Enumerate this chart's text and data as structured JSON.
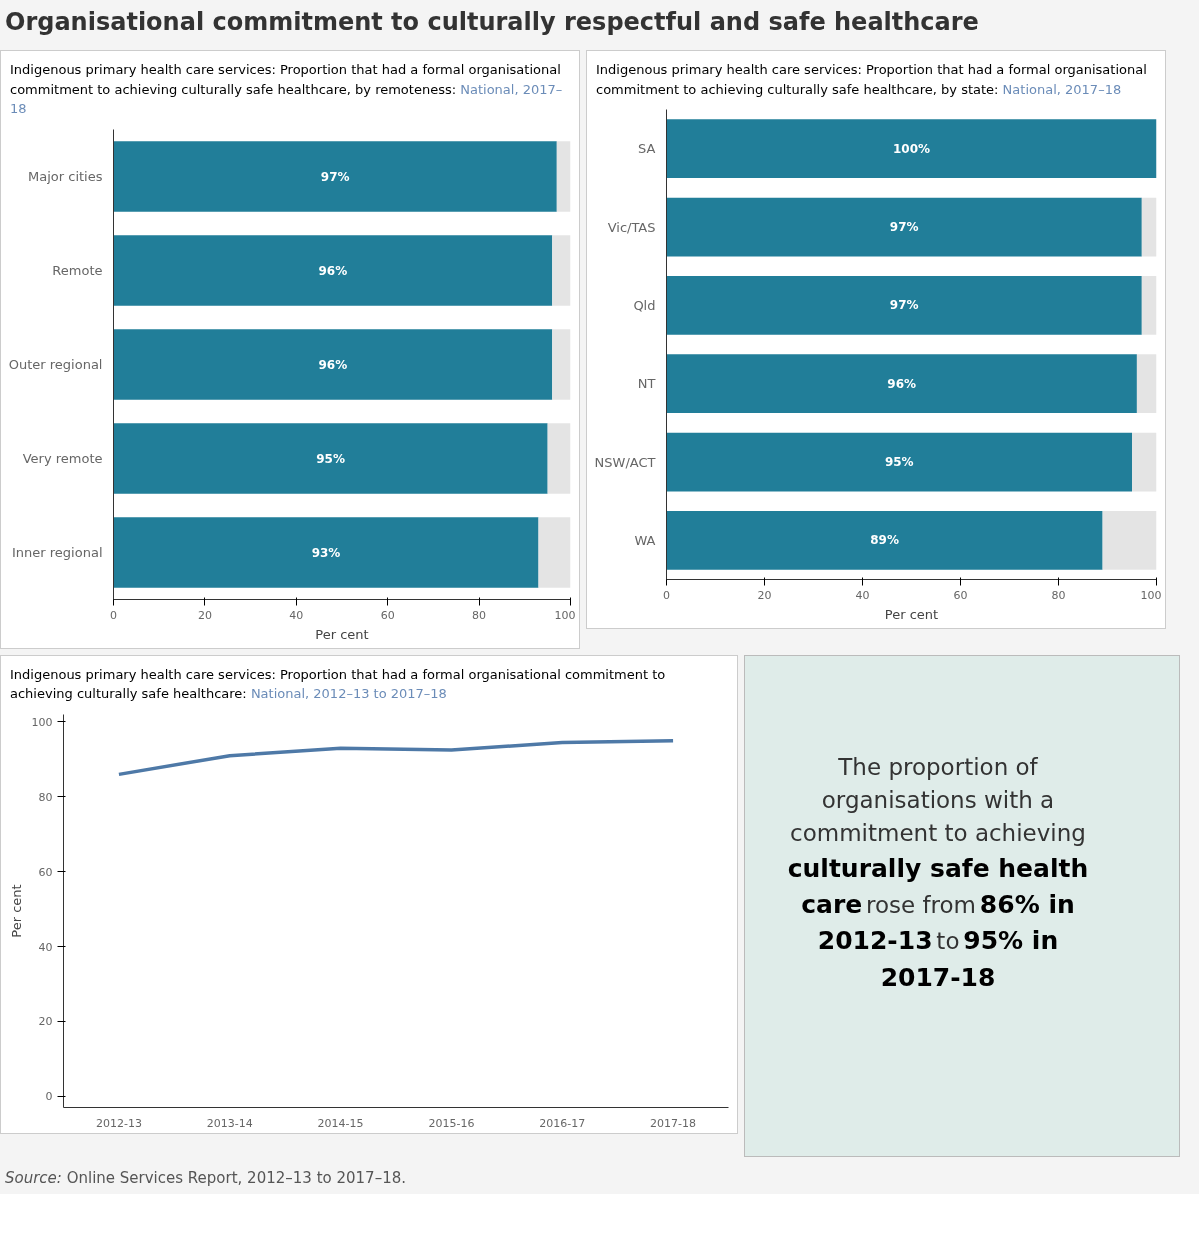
{
  "chart_data": [
    {
      "type": "bar",
      "orientation": "horizontal",
      "stacked": true,
      "title": "Organisational commitment to culturally respectful and safe healthcare",
      "subtitle": "Indigenous primary health care services: Proportion that had a formal organisational commitment to achieving culturally safe healthcare, by remoteness: National, 2017–18",
      "categories": [
        "Major cities",
        "Remote",
        "Outer regional",
        "Very remote",
        "Inner regional"
      ],
      "series": [
        {
          "color": "#217e99",
          "values": [
            97,
            96,
            96,
            95,
            93
          ],
          "value_labels": [
            "97%",
            "96%",
            "96%",
            "95%",
            "93%"
          ]
        },
        {
          "color": "#e4e4e4",
          "values": [
            3,
            4,
            4,
            5,
            7
          ]
        }
      ],
      "xlim": [
        0,
        100
      ],
      "xticks": [
        0,
        20,
        40,
        60,
        80,
        100
      ],
      "xlabel": "Per cent",
      "grid": false
    },
    {
      "type": "bar",
      "orientation": "horizontal",
      "stacked": true,
      "title": "Indigenous primary health care services: Proportion that had a formal organisational commitment to achieving culturally safe healthcare, by state: National, 2017–18",
      "categories": [
        "SA",
        "Vic/TAS",
        "Qld",
        "NT",
        "NSW/ACT",
        "WA"
      ],
      "series": [
        {
          "color": "#217e99",
          "values": [
            100,
            97,
            97,
            96,
            95,
            89
          ],
          "value_labels": [
            "100%",
            "97%",
            "97%",
            "96%",
            "95%",
            "89%"
          ]
        },
        {
          "color": "#e4e4e4",
          "values": [
            0,
            3,
            3,
            4,
            5,
            11
          ]
        }
      ],
      "xlim": [
        0,
        100
      ],
      "xticks": [
        0,
        20,
        40,
        60,
        80,
        100
      ],
      "xlabel": "Per cent",
      "grid": false
    },
    {
      "type": "line",
      "title": "Indigenous primary health care services: Proportion that had a formal organisational commitment to achieving culturally safe healthcare: National, 2012–13 to 2017–18",
      "categories": [
        "2012-13",
        "2013-14",
        "2014-15",
        "2015-16",
        "2016-17",
        "2017-18"
      ],
      "series": [
        {
          "color": "#4e79a7",
          "values": [
            86,
            91,
            93,
            92.5,
            94.5,
            95
          ]
        }
      ],
      "ylim": [
        -3,
        102
      ],
      "yticks": [
        0,
        20,
        40,
        60,
        80,
        100
      ],
      "ylabel": "Per cent",
      "grid": false,
      "marker": "none",
      "line_style": "solid",
      "annotations": [
        "Source: Online Services Report, 2012–13 to 2017–18."
      ]
    },
    {
      "type": "other",
      "annotations": [
        "The proportion of organisations with a commitment to achieving",
        "culturally safe health care",
        "rose from",
        "86% in 2012-13",
        "to",
        "95% in 2017-18"
      ]
    }
  ]
}
